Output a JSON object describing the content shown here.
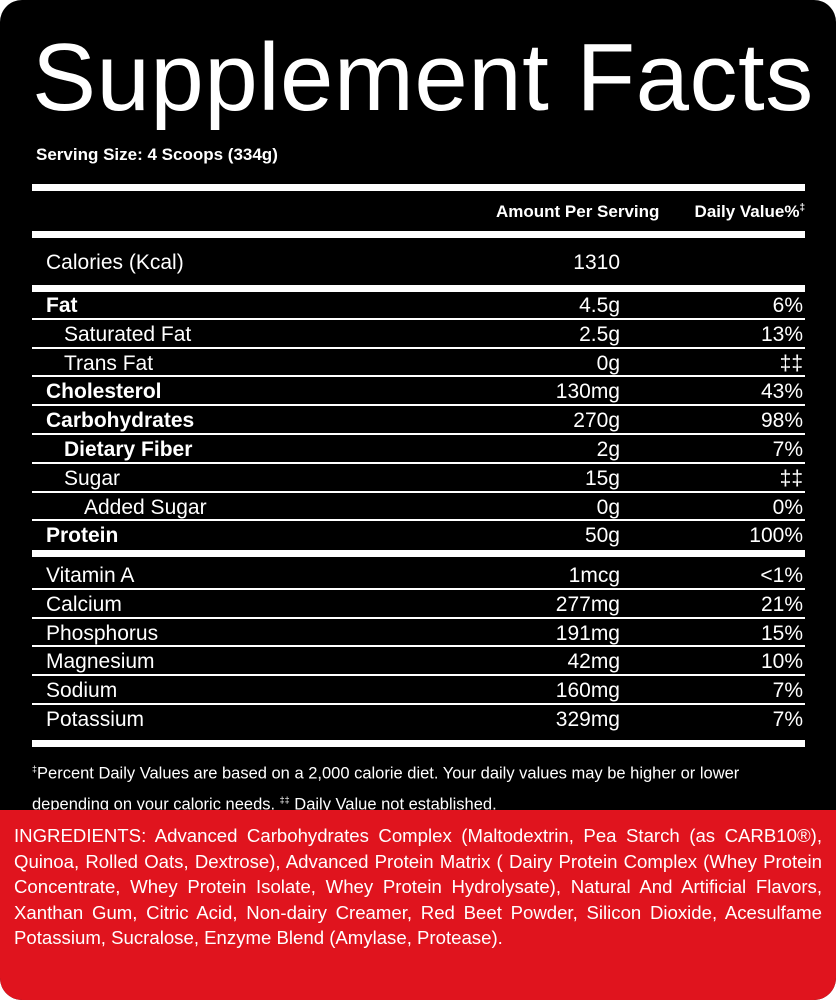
{
  "title": "Supplement Facts",
  "serving_size": "Serving Size: 4 Scoops (334g)",
  "header": {
    "amount_label": "Amount Per Serving",
    "daily_value_label": "Daily Value%",
    "daily_value_mark": "‡"
  },
  "calories": {
    "name": "Calories (Kcal)",
    "amount": "1310"
  },
  "nutrients": [
    {
      "name": "Fat",
      "amount": "4.5g",
      "dv": "6%"
    },
    {
      "name": "Saturated Fat",
      "amount": "2.5g",
      "dv": "13%"
    },
    {
      "name": "Trans Fat",
      "amount": "0g",
      "dv": "‡‡"
    },
    {
      "name": "Cholesterol",
      "amount": "130mg",
      "dv": "43%"
    },
    {
      "name": "Carbohydrates",
      "amount": "270g",
      "dv": "98%"
    },
    {
      "name": "Dietary Fiber",
      "amount": "2g",
      "dv": "7%"
    },
    {
      "name": "Sugar",
      "amount": "15g",
      "dv": "‡‡"
    },
    {
      "name": "Added Sugar",
      "amount": "0g",
      "dv": "0%"
    },
    {
      "name": "Protein",
      "amount": "50g",
      "dv": "100%"
    }
  ],
  "minerals": [
    {
      "name": "Vitamin A",
      "amount": "1mcg",
      "dv": "<1%"
    },
    {
      "name": "Calcium",
      "amount": "277mg",
      "dv": "21%"
    },
    {
      "name": "Phosphorus",
      "amount": "191mg",
      "dv": "15%"
    },
    {
      "name": "Magnesium",
      "amount": "42mg",
      "dv": "10%"
    },
    {
      "name": "Sodium",
      "amount": "160mg",
      "dv": "7%"
    },
    {
      "name": "Potassium",
      "amount": "329mg",
      "dv": "7%"
    }
  ],
  "footnote": {
    "mark1": "‡",
    "text1": "Percent Daily Values are based on a 2,000 calorie diet. Your daily values may be higher or lower depending on your caloric needs. ",
    "mark2": "‡‡",
    "text2": " Daily Value not established."
  },
  "ingredients": "INGREDIENTS: Advanced Carbohydrates Complex (Maltodextrin, Pea Starch (as CARB10®), Quinoa, Rolled Oats, Dextrose), Advanced Protein Matrix ( Dairy Protein Complex (Whey Protein Concentrate, Whey Protein Isolate, Whey Protein Hydrolysate), Natural And Artificial Flavors, Xanthan Gum, Citric Acid, Non-dairy Creamer, Red Beet Powder, Silicon Dioxide, Acesulfame Potassium, Sucralose, Enzyme Blend (Amylase, Protease).",
  "colors": {
    "background": "#000000",
    "text": "#ffffff",
    "ingredients_bg": "#e0141e"
  }
}
